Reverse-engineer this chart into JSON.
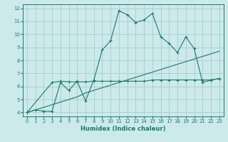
{
  "xlabel": "Humidex (Indice chaleur)",
  "bg_color": "#cceaea",
  "line_color": "#1a7a6e",
  "grid_color": "#aacccc",
  "xlim": [
    -0.5,
    23.5
  ],
  "ylim": [
    3.7,
    12.3
  ],
  "xticks": [
    0,
    1,
    2,
    3,
    4,
    5,
    6,
    7,
    8,
    9,
    10,
    11,
    12,
    13,
    14,
    15,
    16,
    17,
    18,
    19,
    20,
    21,
    22,
    23
  ],
  "yticks": [
    4,
    5,
    6,
    7,
    8,
    9,
    10,
    11,
    12
  ],
  "line1_x": [
    0,
    1,
    2,
    3,
    4,
    5,
    6,
    7,
    8,
    9,
    10,
    11,
    12,
    13,
    14,
    15,
    16,
    17,
    18,
    19,
    20,
    21,
    22,
    23
  ],
  "line1_y": [
    4.0,
    4.2,
    4.1,
    4.1,
    6.3,
    5.7,
    6.4,
    4.9,
    6.5,
    8.8,
    9.5,
    11.8,
    11.5,
    10.9,
    11.1,
    11.6,
    9.8,
    9.3,
    8.6,
    9.8,
    8.9,
    6.3,
    6.5,
    6.6
  ],
  "line2_x": [
    0,
    3,
    4,
    5,
    6,
    7,
    8,
    9,
    10,
    11,
    12,
    13,
    14,
    15,
    16,
    17,
    18,
    19,
    20,
    21,
    22,
    23
  ],
  "line2_y": [
    4.0,
    6.3,
    6.4,
    6.35,
    6.35,
    6.35,
    6.4,
    6.4,
    6.4,
    6.4,
    6.4,
    6.4,
    6.4,
    6.5,
    6.5,
    6.5,
    6.5,
    6.5,
    6.5,
    6.5,
    6.5,
    6.6
  ],
  "line3_x": [
    0,
    4,
    5,
    6,
    7,
    8,
    9,
    10,
    11,
    12,
    13,
    14,
    15,
    16,
    17,
    18,
    19,
    20,
    21,
    22,
    23
  ],
  "line3_y": [
    4.0,
    4.8,
    5.0,
    5.2,
    5.5,
    5.7,
    5.9,
    6.1,
    6.3,
    6.5,
    6.7,
    6.9,
    7.1,
    7.3,
    7.5,
    7.7,
    7.9,
    8.1,
    8.3,
    8.5,
    8.7
  ]
}
